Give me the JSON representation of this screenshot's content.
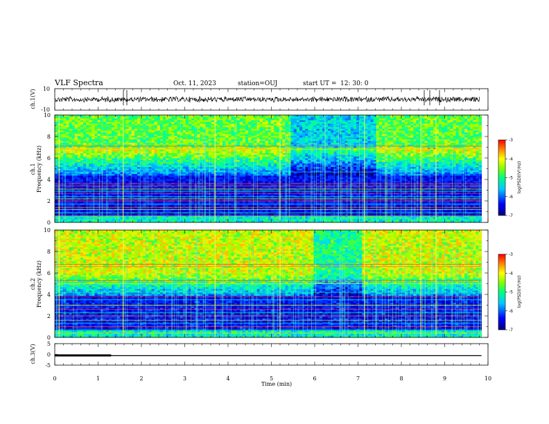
{
  "header": {
    "title": "VLF Spectra",
    "date": "Oct. 11, 2023",
    "station": "station=OUJ",
    "start_prefix": "start  UT  =",
    "start_time": "12: 30: 0"
  },
  "chart_data": [
    {
      "type": "line",
      "name": "ch1-waveform",
      "ylabel": "ch.1(V)",
      "ylim": [
        -10,
        10
      ],
      "y_ticks": [
        "10",
        "-10"
      ],
      "xlim": [
        0,
        10
      ]
    },
    {
      "type": "heatmap",
      "name": "ch1-spectrogram",
      "ylabel": "ch.1\nFrequency (kHz)",
      "ylabel_line1": "ch.1",
      "ylabel_line2": "Frequency (kHz)",
      "ylim": [
        0,
        10
      ],
      "y_ticks": [
        "0",
        "2",
        "4",
        "6",
        "8",
        "10"
      ],
      "xlim": [
        0,
        9.85
      ],
      "colorbar": {
        "label": "log(PSD)(V²/Hz)",
        "ticks": [
          "-3",
          "-4",
          "-5",
          "-6",
          "-7"
        ],
        "range": [
          -7,
          -3
        ]
      }
    },
    {
      "type": "heatmap",
      "name": "ch2-spectrogram",
      "ylabel_line1": "ch.2",
      "ylabel_line2": "Frequency (kHz)",
      "ylim": [
        0,
        10
      ],
      "y_ticks": [
        "0",
        "2",
        "4",
        "6",
        "8",
        "10"
      ],
      "xlim": [
        0,
        9.85
      ],
      "colorbar": {
        "label": "log(PSD)(V²/Hz)",
        "ticks": [
          "-3",
          "-4",
          "-5",
          "-6",
          "-7"
        ],
        "range": [
          -7,
          -3
        ]
      }
    },
    {
      "type": "line",
      "name": "ch3-voltage",
      "ylabel": "ch.3(V)",
      "ylim": [
        -5,
        5
      ],
      "y_ticks": [
        "5",
        "0",
        "-5"
      ],
      "xlim": [
        0,
        10
      ],
      "series": [
        {
          "x": [
            0,
            1.3
          ],
          "y": [
            -0.5,
            -0.5
          ]
        },
        {
          "x": [
            0,
            9.85
          ],
          "y": [
            -0.6,
            -0.6
          ]
        }
      ]
    }
  ],
  "x_axis": {
    "label": "Time (min)",
    "ticks": [
      "0",
      "1",
      "2",
      "3",
      "4",
      "5",
      "6",
      "7",
      "8",
      "9",
      "10"
    ]
  },
  "colors": {
    "axis": "#000000",
    "background": "#ffffff"
  }
}
